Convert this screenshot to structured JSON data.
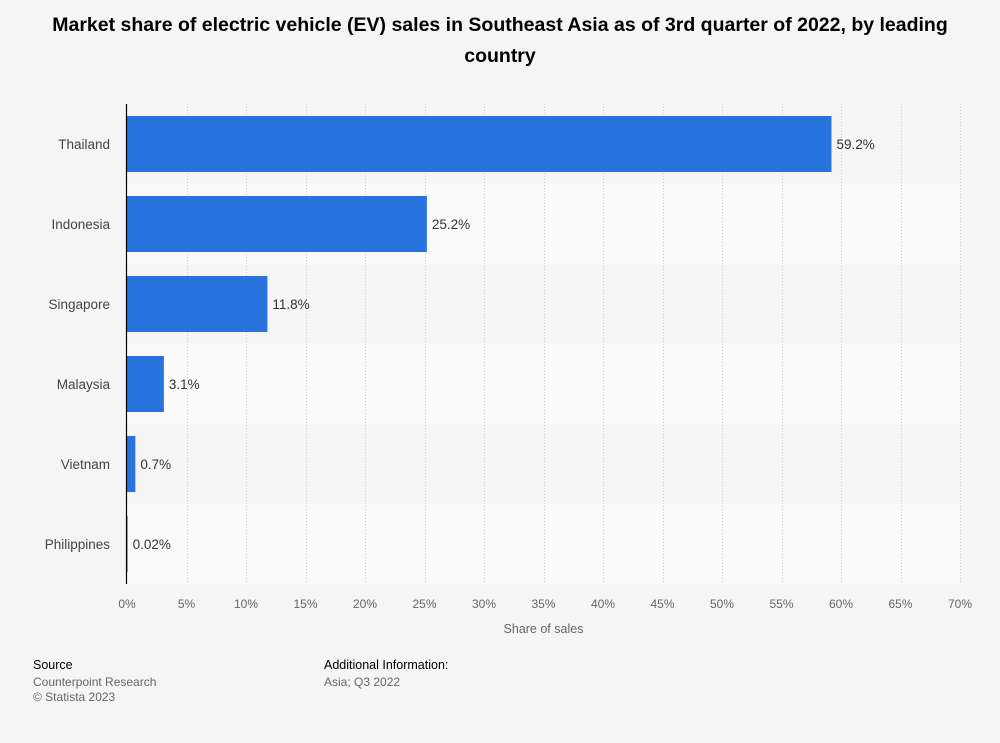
{
  "chart_data": {
    "type": "bar",
    "orientation": "horizontal",
    "title": "Market share of electric vehicle (EV) sales in Southeast Asia as of 3rd quarter of 2022, by leading country",
    "categories": [
      "Thailand",
      "Indonesia",
      "Singapore",
      "Malaysia",
      "Vietnam",
      "Philippines"
    ],
    "values": [
      59.2,
      25.2,
      11.8,
      3.1,
      0.7,
      0.02
    ],
    "value_labels": [
      "59.2%",
      "25.2%",
      "11.8%",
      "3.1%",
      "0.7%",
      "0.02%"
    ],
    "xlabel": "Share of sales",
    "ylabel": "",
    "xlim": [
      0,
      70
    ],
    "xticks": [
      0,
      5,
      10,
      15,
      20,
      25,
      30,
      35,
      40,
      45,
      50,
      55,
      60,
      65,
      70
    ],
    "xtick_labels": [
      "0%",
      "5%",
      "10%",
      "15%",
      "20%",
      "25%",
      "30%",
      "35%",
      "40%",
      "45%",
      "50%",
      "55%",
      "60%",
      "65%",
      "70%"
    ],
    "bar_color": "#2874de",
    "grid": true
  },
  "footer": {
    "source_label": "Source",
    "source_lines": [
      "Counterpoint Research",
      "© Statista 2023"
    ],
    "additional_label": "Additional Information:",
    "additional_lines": [
      "Asia; Q3 2022"
    ]
  }
}
